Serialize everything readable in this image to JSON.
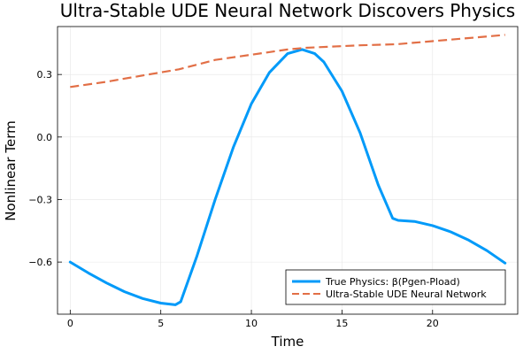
{
  "chart_data": {
    "type": "line",
    "title": "Ultra-Stable UDE Neural Network Discovers Physics",
    "xlabel": "Time",
    "ylabel": "Nonlinear Term",
    "xlim": [
      -0.7,
      24.7
    ],
    "ylim": [
      -0.85,
      0.53
    ],
    "xticks": [
      0,
      5,
      10,
      15,
      20
    ],
    "xtick_labels": [
      "0",
      "5",
      "10",
      "15",
      "20"
    ],
    "yticks": [
      -0.6,
      -0.3,
      0.0,
      0.3
    ],
    "ytick_labels": [
      "−0.6",
      "−0.3",
      "0.0",
      "0.3"
    ],
    "grid": true,
    "legend_position": "bottom-right",
    "series": [
      {
        "name": "True Physics: β(Pgen-Pload)",
        "color": "#009af9",
        "style": "solid",
        "x": [
          0,
          1,
          2,
          3,
          4,
          5,
          5.8,
          6.1,
          7,
          8,
          9,
          10,
          11,
          12,
          12.8,
          13.5,
          14,
          15,
          16,
          17,
          17.8,
          18.1,
          19,
          20,
          21,
          22,
          23,
          24
        ],
        "y": [
          -0.6,
          -0.652,
          -0.7,
          -0.742,
          -0.775,
          -0.797,
          -0.805,
          -0.79,
          -0.57,
          -0.3,
          -0.05,
          0.16,
          0.31,
          0.4,
          0.42,
          0.4,
          0.36,
          0.22,
          0.02,
          -0.23,
          -0.39,
          -0.4,
          -0.405,
          -0.425,
          -0.455,
          -0.495,
          -0.545,
          -0.605
        ]
      },
      {
        "name": "Ultra-Stable UDE Neural Network",
        "color": "#e26f46",
        "style": "dashed",
        "x": [
          0,
          2,
          4,
          6,
          8,
          10,
          12,
          13,
          16,
          18,
          20,
          22,
          24
        ],
        "y": [
          0.24,
          0.265,
          0.295,
          0.325,
          0.37,
          0.395,
          0.42,
          0.428,
          0.44,
          0.445,
          0.46,
          0.475,
          0.49
        ]
      }
    ]
  }
}
